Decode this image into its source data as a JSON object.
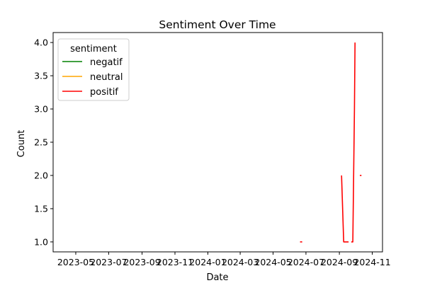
{
  "chart_data": {
    "type": "line",
    "title": "Sentiment Over Time",
    "xlabel": "Date",
    "ylabel": "Count",
    "x_ticks": [
      "2023-05",
      "2023-07",
      "2023-09",
      "2023-11",
      "2024-01",
      "2024-03",
      "2024-05",
      "2024-07",
      "2024-09",
      "2024-11"
    ],
    "x_range": [
      "2023-03-20",
      "2024-11-20"
    ],
    "y_ticks": [
      1.0,
      1.5,
      2.0,
      2.5,
      3.0,
      3.5,
      4.0
    ],
    "ylim": [
      0.85,
      4.15
    ],
    "grid": false,
    "legend": {
      "title": "sentiment",
      "position": "top-left"
    },
    "series": [
      {
        "name": "negatif",
        "color": "#008000",
        "points": []
      },
      {
        "name": "neutral",
        "color": "#ffa500",
        "points": []
      },
      {
        "name": "positif",
        "color": "#ff0000",
        "segments": [
          [
            [
              "2024-06-20",
              1
            ],
            [
              "2024-06-24",
              1
            ]
          ],
          [
            [
              "2024-09-05",
              2
            ],
            [
              "2024-09-09",
              1
            ],
            [
              "2024-09-12",
              1
            ],
            [
              "2024-09-15",
              1
            ],
            [
              "2024-09-18",
              1
            ]
          ],
          [
            [
              "2024-09-23",
              1
            ],
            [
              "2024-09-26",
              1
            ],
            [
              "2024-09-29",
              3
            ],
            [
              "2024-09-30",
              4
            ]
          ],
          [
            [
              "2024-10-09",
              2
            ],
            [
              "2024-10-12",
              2
            ]
          ]
        ]
      }
    ]
  }
}
